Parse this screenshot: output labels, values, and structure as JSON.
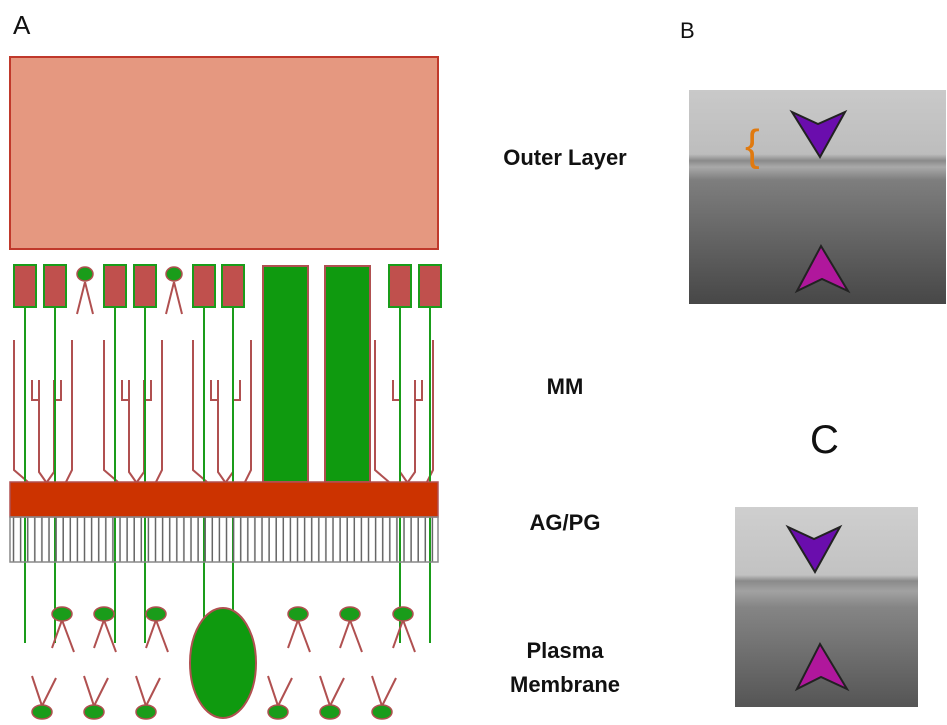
{
  "panels": {
    "a": "A",
    "b": "B",
    "c": "C"
  },
  "layers": [
    {
      "label": "Outer Layer"
    },
    {
      "label": "MM"
    },
    {
      "label": "AG/PG"
    },
    {
      "label": "Plasma Membrane"
    }
  ]
}
